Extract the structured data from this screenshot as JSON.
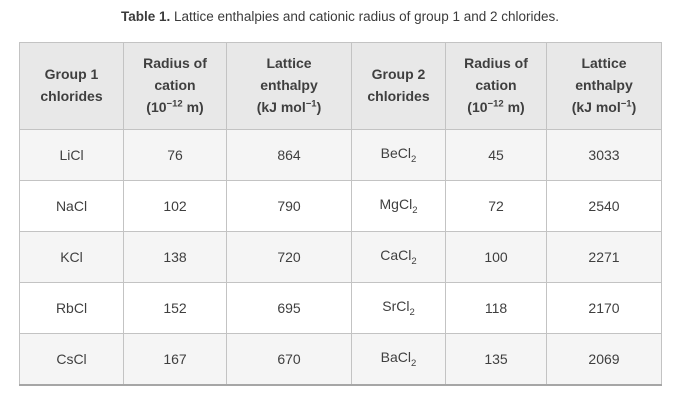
{
  "caption": {
    "label": "Table 1.",
    "text": "Lattice enthalpies and cationic radius of group 1 and 2 chlorides."
  },
  "table": {
    "headers": [
      [
        "Group 1",
        "chlorides"
      ],
      [
        "Radius of",
        "cation",
        "(10^{−12} m)"
      ],
      [
        "Lattice",
        "enthalpy",
        "(kJ mol^{−1})"
      ],
      [
        "Group 2",
        "chlorides"
      ],
      [
        "Radius of",
        "cation",
        "(10^{−12} m)"
      ],
      [
        "Lattice",
        "enthalpy",
        "(kJ mol^{−1})"
      ]
    ],
    "rows": [
      [
        "LiCl",
        "76",
        "864",
        "BeCl_{2}",
        "45",
        "3033"
      ],
      [
        "NaCl",
        "102",
        "790",
        "MgCl_{2}",
        "72",
        "2540"
      ],
      [
        "KCl",
        "138",
        "720",
        "CaCl_{2}",
        "100",
        "2271"
      ],
      [
        "RbCl",
        "152",
        "695",
        "SrCl_{2}",
        "118",
        "2170"
      ],
      [
        "CsCl",
        "167",
        "670",
        "BaCl_{2}",
        "135",
        "2069"
      ]
    ]
  },
  "colors": {
    "header_bg": "#e8e8e8",
    "row_alt_bg": "#f5f5f5",
    "row_bg": "#ffffff",
    "border": "#c3c3c3",
    "text": "#3f3f3f"
  }
}
